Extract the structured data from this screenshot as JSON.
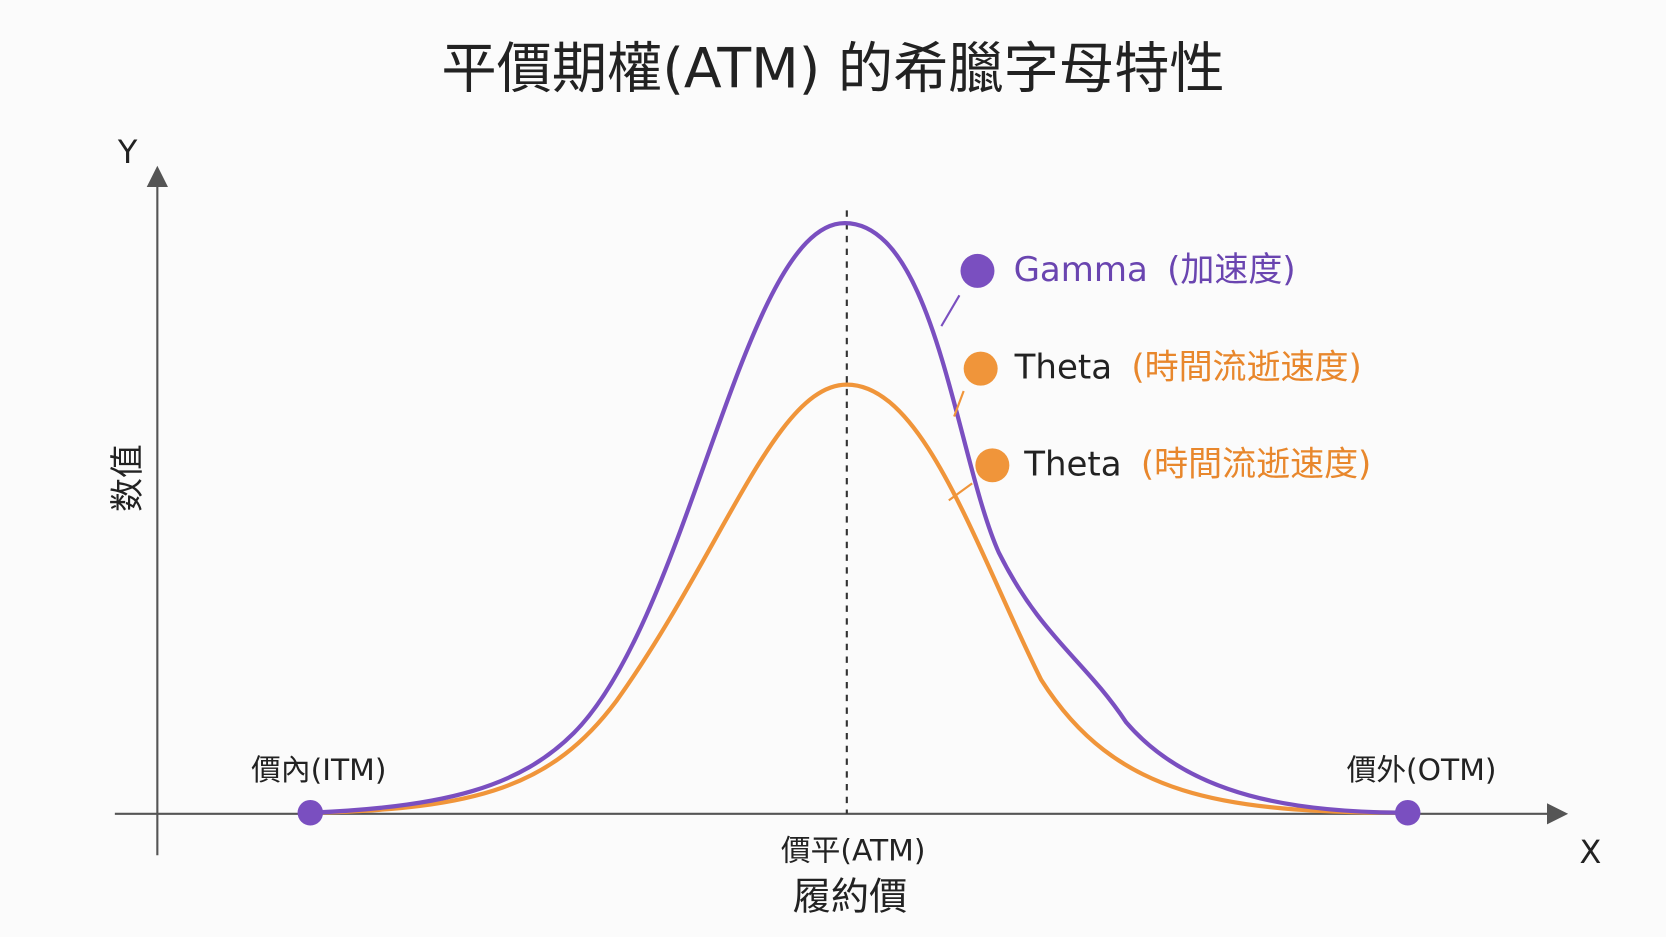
{
  "title": "平價期權(ATM) 的希臘字母特性",
  "axes": {
    "y_label": "Y",
    "x_label": "X",
    "y_title": "数值",
    "x_title": "履約價"
  },
  "markers": {
    "itm": "價內(ITM)",
    "atm": "價平(ATM)",
    "otm": "價外(OTM)"
  },
  "legend": [
    {
      "name": "Gamma",
      "note": "(加速度)"
    },
    {
      "name": "Theta",
      "note": "(時間流逝速度)"
    },
    {
      "name": "Theta",
      "note": "(時間流逝速度)"
    }
  ]
}
